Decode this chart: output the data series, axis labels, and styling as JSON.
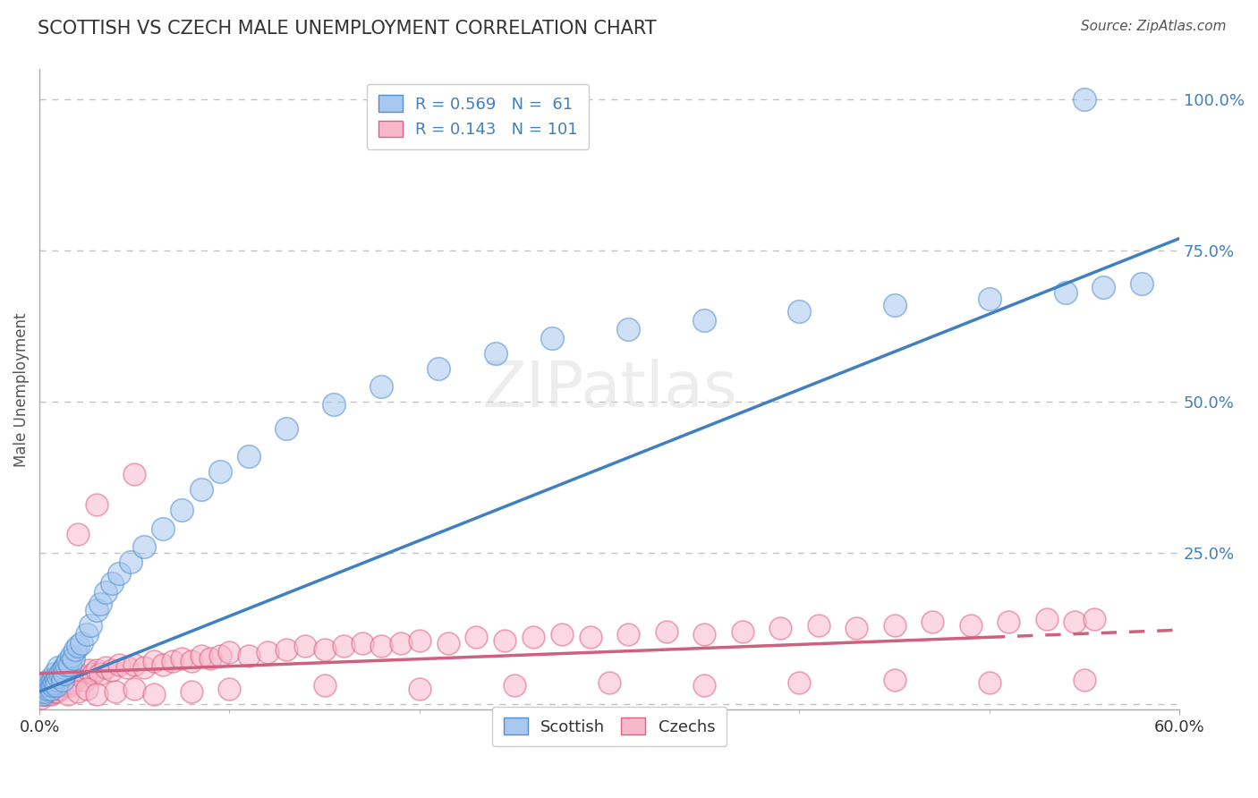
{
  "title": "SCOTTISH VS CZECH MALE UNEMPLOYMENT CORRELATION CHART",
  "source": "Source: ZipAtlas.com",
  "ylabel": "Male Unemployment",
  "xlim": [
    0.0,
    0.6
  ],
  "ylim": [
    -0.01,
    1.05
  ],
  "yticks": [
    0.0,
    0.25,
    0.5,
    0.75,
    1.0
  ],
  "ytick_labels": [
    "",
    "25.0%",
    "50.0%",
    "75.0%",
    "100.0%"
  ],
  "scottish_color": "#A8C8F0",
  "czech_color": "#F8B8CC",
  "scottish_edge_color": "#5090D0",
  "czech_edge_color": "#E06080",
  "scottish_line_color": "#4080C0",
  "czech_line_color": "#D06080",
  "scottish_R": 0.569,
  "scottish_N": 61,
  "czech_R": 0.143,
  "czech_N": 101,
  "background": "#ffffff",
  "grid_color": "#BBBBBB",
  "title_color": "#333333",
  "source_color": "#555555",
  "watermark_color": "#DDDDDD",
  "scottish_x": [
    0.001,
    0.002,
    0.002,
    0.003,
    0.003,
    0.004,
    0.004,
    0.005,
    0.005,
    0.006,
    0.006,
    0.007,
    0.007,
    0.008,
    0.008,
    0.009,
    0.009,
    0.01,
    0.01,
    0.011,
    0.012,
    0.012,
    0.013,
    0.013,
    0.014,
    0.015,
    0.016,
    0.017,
    0.018,
    0.019,
    0.02,
    0.022,
    0.025,
    0.027,
    0.03,
    0.032,
    0.035,
    0.038,
    0.042,
    0.048,
    0.055,
    0.065,
    0.075,
    0.085,
    0.095,
    0.11,
    0.13,
    0.155,
    0.18,
    0.21,
    0.24,
    0.27,
    0.31,
    0.35,
    0.4,
    0.45,
    0.5,
    0.54,
    0.56,
    0.58,
    0.55
  ],
  "scottish_y": [
    0.02,
    0.015,
    0.025,
    0.02,
    0.03,
    0.025,
    0.035,
    0.03,
    0.04,
    0.035,
    0.025,
    0.04,
    0.03,
    0.05,
    0.035,
    0.04,
    0.03,
    0.045,
    0.06,
    0.05,
    0.055,
    0.04,
    0.06,
    0.05,
    0.065,
    0.07,
    0.065,
    0.08,
    0.075,
    0.09,
    0.095,
    0.1,
    0.115,
    0.13,
    0.155,
    0.165,
    0.185,
    0.2,
    0.215,
    0.235,
    0.26,
    0.29,
    0.32,
    0.355,
    0.385,
    0.41,
    0.455,
    0.495,
    0.525,
    0.555,
    0.58,
    0.605,
    0.62,
    0.635,
    0.65,
    0.66,
    0.67,
    0.68,
    0.69,
    0.695,
    1.0
  ],
  "czech_x": [
    0.001,
    0.002,
    0.002,
    0.003,
    0.003,
    0.004,
    0.004,
    0.005,
    0.005,
    0.006,
    0.006,
    0.007,
    0.007,
    0.008,
    0.008,
    0.009,
    0.009,
    0.01,
    0.01,
    0.011,
    0.012,
    0.013,
    0.014,
    0.015,
    0.016,
    0.017,
    0.018,
    0.019,
    0.02,
    0.022,
    0.024,
    0.026,
    0.028,
    0.03,
    0.032,
    0.035,
    0.038,
    0.042,
    0.046,
    0.05,
    0.055,
    0.06,
    0.065,
    0.07,
    0.075,
    0.08,
    0.085,
    0.09,
    0.095,
    0.1,
    0.11,
    0.12,
    0.13,
    0.14,
    0.15,
    0.16,
    0.17,
    0.18,
    0.19,
    0.2,
    0.215,
    0.23,
    0.245,
    0.26,
    0.275,
    0.29,
    0.31,
    0.33,
    0.35,
    0.37,
    0.39,
    0.41,
    0.43,
    0.45,
    0.47,
    0.49,
    0.51,
    0.53,
    0.545,
    0.555,
    0.015,
    0.02,
    0.025,
    0.03,
    0.04,
    0.05,
    0.06,
    0.08,
    0.1,
    0.15,
    0.2,
    0.25,
    0.3,
    0.35,
    0.4,
    0.45,
    0.5,
    0.55,
    0.02,
    0.03,
    0.05
  ],
  "czech_y": [
    0.01,
    0.015,
    0.02,
    0.015,
    0.025,
    0.02,
    0.015,
    0.025,
    0.02,
    0.03,
    0.015,
    0.025,
    0.03,
    0.02,
    0.035,
    0.025,
    0.02,
    0.03,
    0.04,
    0.025,
    0.035,
    0.03,
    0.04,
    0.035,
    0.03,
    0.045,
    0.035,
    0.04,
    0.05,
    0.045,
    0.04,
    0.055,
    0.05,
    0.055,
    0.05,
    0.06,
    0.055,
    0.065,
    0.06,
    0.065,
    0.06,
    0.07,
    0.065,
    0.07,
    0.075,
    0.07,
    0.08,
    0.075,
    0.08,
    0.085,
    0.08,
    0.085,
    0.09,
    0.095,
    0.09,
    0.095,
    0.1,
    0.095,
    0.1,
    0.105,
    0.1,
    0.11,
    0.105,
    0.11,
    0.115,
    0.11,
    0.115,
    0.12,
    0.115,
    0.12,
    0.125,
    0.13,
    0.125,
    0.13,
    0.135,
    0.13,
    0.135,
    0.14,
    0.135,
    0.14,
    0.015,
    0.02,
    0.025,
    0.015,
    0.02,
    0.025,
    0.015,
    0.02,
    0.025,
    0.03,
    0.025,
    0.03,
    0.035,
    0.03,
    0.035,
    0.04,
    0.035,
    0.04,
    0.28,
    0.33,
    0.38
  ]
}
